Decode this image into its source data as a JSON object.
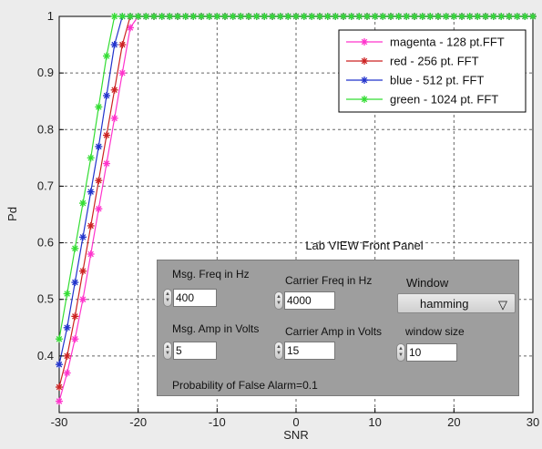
{
  "chart_data": {
    "type": "line",
    "title": "",
    "xlabel": "SNR",
    "ylabel": "Pd",
    "xlim": [
      -30,
      30
    ],
    "ylim": [
      0.3,
      1
    ],
    "xticks": [
      -30,
      -20,
      -10,
      0,
      10,
      20,
      30
    ],
    "xtick_labels": [
      "-30",
      "-20",
      "-10",
      "0",
      "10",
      "20",
      "30"
    ],
    "yticks": [
      0.4,
      0.5,
      0.6,
      0.7,
      0.8,
      0.9,
      1
    ],
    "ytick_labels": [
      "0.4",
      "0.5",
      "0.6",
      "0.7",
      "0.8",
      "0.9",
      "1"
    ],
    "grid": true,
    "legend_position": "top-right",
    "x": [
      -30,
      -29,
      -28,
      -27,
      -26,
      -25,
      -24,
      -23,
      -22,
      -21,
      -20,
      -19,
      -18,
      -17,
      -16,
      -15,
      -14,
      -13,
      -12,
      -11,
      -10,
      -9,
      -8,
      -7,
      -6,
      -5,
      -4,
      -3,
      -2,
      -1,
      0,
      1,
      2,
      3,
      4,
      5,
      6,
      7,
      8,
      9,
      10,
      11,
      12,
      13,
      14,
      15,
      16,
      17,
      18,
      19,
      20,
      21,
      22,
      23,
      24,
      25,
      26,
      27,
      28,
      29,
      30
    ],
    "series": [
      {
        "name": "magenta - 128 pt.FFT",
        "color": "#ff33cc",
        "marker": "*",
        "values": [
          0.32,
          0.37,
          0.43,
          0.5,
          0.58,
          0.66,
          0.74,
          0.82,
          0.9,
          0.98,
          1,
          1,
          1,
          1,
          1,
          1,
          1,
          1,
          1,
          1,
          1,
          1,
          1,
          1,
          1,
          1,
          1,
          1,
          1,
          1,
          1,
          1,
          1,
          1,
          1,
          1,
          1,
          1,
          1,
          1,
          1,
          1,
          1,
          1,
          1,
          1,
          1,
          1,
          1,
          1,
          1,
          1,
          1,
          1,
          1,
          1,
          1,
          1,
          1,
          1,
          1
        ]
      },
      {
        "name": "red - 256 pt. FFT",
        "color": "#cc2222",
        "marker": "*",
        "values": [
          0.345,
          0.4,
          0.47,
          0.55,
          0.63,
          0.71,
          0.79,
          0.87,
          0.95,
          1,
          1,
          1,
          1,
          1,
          1,
          1,
          1,
          1,
          1,
          1,
          1,
          1,
          1,
          1,
          1,
          1,
          1,
          1,
          1,
          1,
          1,
          1,
          1,
          1,
          1,
          1,
          1,
          1,
          1,
          1,
          1,
          1,
          1,
          1,
          1,
          1,
          1,
          1,
          1,
          1,
          1,
          1,
          1,
          1,
          1,
          1,
          1,
          1,
          1,
          1,
          1
        ]
      },
      {
        "name": "blue - 512 pt. FFT",
        "color": "#2233cc",
        "marker": "*",
        "values": [
          0.385,
          0.45,
          0.53,
          0.61,
          0.69,
          0.77,
          0.86,
          0.95,
          1,
          1,
          1,
          1,
          1,
          1,
          1,
          1,
          1,
          1,
          1,
          1,
          1,
          1,
          1,
          1,
          1,
          1,
          1,
          1,
          1,
          1,
          1,
          1,
          1,
          1,
          1,
          1,
          1,
          1,
          1,
          1,
          1,
          1,
          1,
          1,
          1,
          1,
          1,
          1,
          1,
          1,
          1,
          1,
          1,
          1,
          1,
          1,
          1,
          1,
          1,
          1,
          1
        ]
      },
      {
        "name": "green - 1024 pt. FFT",
        "color": "#33dd33",
        "marker": "*",
        "values": [
          0.43,
          0.51,
          0.59,
          0.67,
          0.75,
          0.84,
          0.93,
          1,
          1,
          1,
          1,
          1,
          1,
          1,
          1,
          1,
          1,
          1,
          1,
          1,
          1,
          1,
          1,
          1,
          1,
          1,
          1,
          1,
          1,
          1,
          1,
          1,
          1,
          1,
          1,
          1,
          1,
          1,
          1,
          1,
          1,
          1,
          1,
          1,
          1,
          1,
          1,
          1,
          1,
          1,
          1,
          1,
          1,
          1,
          1,
          1,
          1,
          1,
          1,
          1,
          1
        ]
      }
    ]
  },
  "panel": {
    "title": "Lab VIEW Front Panel",
    "msg_freq_label": "Msg. Freq in Hz",
    "msg_freq_value": "400",
    "carrier_freq_label": "Carrier Freq in Hz",
    "carrier_freq_value": "4000",
    "window_label": "Window",
    "window_value": "hamming",
    "msg_amp_label": "Msg. Amp in Volts",
    "msg_amp_value": "5",
    "carrier_amp_label": "Carrier Amp in Volts",
    "carrier_amp_value": "15",
    "window_size_label": "window size",
    "window_size_value": "10",
    "pfa_text": "Probability of False Alarm=0.1"
  }
}
